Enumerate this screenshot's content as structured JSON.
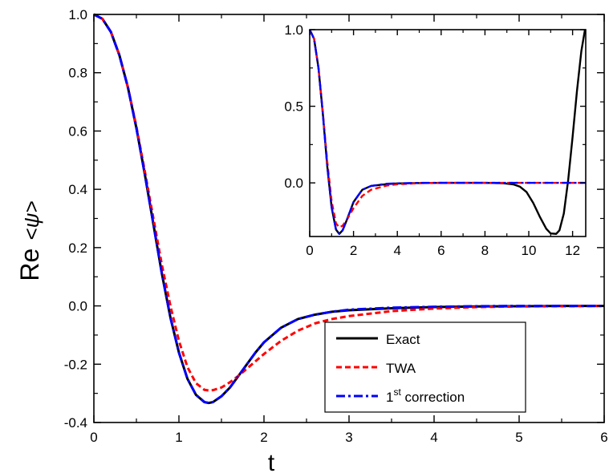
{
  "chart_data": [
    {
      "type": "line",
      "xlabel": "t",
      "ylabel_prefix": "Re",
      "ylabel_expr": "<ψ>",
      "xlim": [
        0,
        6
      ],
      "ylim": [
        -0.4,
        1.0
      ],
      "x_ticks": [
        0,
        1,
        2,
        3,
        4,
        5,
        6
      ],
      "x_tick_labels": [
        "0",
        "1",
        "2",
        "3",
        "4",
        "5",
        "6"
      ],
      "y_ticks": [
        1.0,
        0.8,
        0.6,
        0.4,
        0.2,
        0.0,
        -0.2,
        -0.4
      ],
      "y_tick_labels": [
        "1.0",
        "0.8",
        "0.6",
        "0.4",
        "0.2",
        "0.0",
        "-0.2",
        "-0.4"
      ],
      "grid": false,
      "legend": {
        "position": "bottom-right",
        "entries": [
          {
            "label": "Exact",
            "sup": "",
            "label_rest": ""
          },
          {
            "label": "TWA",
            "sup": "",
            "label_rest": ""
          },
          {
            "label": "1",
            "sup": "st",
            "label_rest": " correction"
          }
        ]
      },
      "series": [
        {
          "name": "Exact",
          "color": "#000000",
          "style": "solid",
          "x": [
            0,
            0.1,
            0.2,
            0.3,
            0.4,
            0.5,
            0.6,
            0.7,
            0.8,
            0.9,
            1.0,
            1.1,
            1.2,
            1.3,
            1.35,
            1.4,
            1.5,
            1.6,
            1.7,
            1.8,
            1.9,
            2.0,
            2.2,
            2.4,
            2.6,
            2.8,
            3.0,
            3.5,
            4.0,
            4.5,
            5.0,
            5.5,
            6.0
          ],
          "y": [
            1.0,
            0.985,
            0.94,
            0.86,
            0.75,
            0.61,
            0.45,
            0.28,
            0.11,
            -0.04,
            -0.16,
            -0.25,
            -0.305,
            -0.33,
            -0.333,
            -0.33,
            -0.31,
            -0.28,
            -0.24,
            -0.2,
            -0.16,
            -0.125,
            -0.075,
            -0.045,
            -0.03,
            -0.02,
            -0.015,
            -0.008,
            -0.004,
            -0.002,
            -0.001,
            0.0,
            0.0
          ]
        },
        {
          "name": "TWA",
          "color": "#ff0000",
          "style": "dashed",
          "x": [
            0,
            0.1,
            0.2,
            0.3,
            0.4,
            0.5,
            0.6,
            0.7,
            0.8,
            0.9,
            1.0,
            1.1,
            1.2,
            1.3,
            1.35,
            1.4,
            1.5,
            1.6,
            1.7,
            1.8,
            1.9,
            2.0,
            2.2,
            2.4,
            2.6,
            2.8,
            3.0,
            3.5,
            4.0,
            4.5,
            5.0,
            5.5,
            6.0
          ],
          "y": [
            1.0,
            0.985,
            0.94,
            0.86,
            0.75,
            0.615,
            0.46,
            0.3,
            0.14,
            0.0,
            -0.12,
            -0.21,
            -0.265,
            -0.288,
            -0.29,
            -0.289,
            -0.28,
            -0.262,
            -0.24,
            -0.215,
            -0.19,
            -0.165,
            -0.12,
            -0.085,
            -0.06,
            -0.045,
            -0.035,
            -0.018,
            -0.009,
            -0.004,
            -0.002,
            -0.001,
            0.0
          ]
        },
        {
          "name": "1st correction",
          "color": "#0000ff",
          "style": "dashdot",
          "x": [
            0,
            0.1,
            0.2,
            0.3,
            0.4,
            0.5,
            0.6,
            0.7,
            0.8,
            0.9,
            1.0,
            1.1,
            1.2,
            1.3,
            1.35,
            1.4,
            1.5,
            1.6,
            1.7,
            1.8,
            1.9,
            2.0,
            2.2,
            2.4,
            2.6,
            2.8,
            3.0,
            3.5,
            4.0,
            4.5,
            5.0,
            5.5,
            6.0
          ],
          "y": [
            1.0,
            0.985,
            0.94,
            0.86,
            0.75,
            0.61,
            0.45,
            0.28,
            0.11,
            -0.04,
            -0.16,
            -0.25,
            -0.305,
            -0.33,
            -0.333,
            -0.33,
            -0.31,
            -0.28,
            -0.24,
            -0.2,
            -0.16,
            -0.125,
            -0.075,
            -0.045,
            -0.03,
            -0.02,
            -0.013,
            -0.006,
            -0.003,
            -0.001,
            0.0,
            0.0,
            0.0
          ]
        }
      ]
    },
    {
      "type": "line",
      "xlim": [
        0,
        12.6
      ],
      "ylim": [
        -0.35,
        1.0
      ],
      "x_ticks": [
        0,
        2,
        4,
        6,
        8,
        10,
        12
      ],
      "x_tick_labels": [
        "0",
        "2",
        "4",
        "6",
        "8",
        "10",
        "12"
      ],
      "y_ticks": [
        1.0,
        0.5,
        0.0
      ],
      "y_tick_labels": [
        "1.0",
        "0.5",
        "0.0"
      ],
      "grid": false,
      "series": [
        {
          "name": "Exact",
          "color": "#000000",
          "style": "solid",
          "x": [
            0,
            0.2,
            0.4,
            0.6,
            0.8,
            1.0,
            1.2,
            1.35,
            1.5,
            1.7,
            2.0,
            2.4,
            2.8,
            3.5,
            4.0,
            5.0,
            6.0,
            7.0,
            8.0,
            8.8,
            9.3,
            9.6,
            9.9,
            10.2,
            10.5,
            10.8,
            11.0,
            11.25,
            11.4,
            11.6,
            11.8,
            12.0,
            12.2,
            12.4,
            12.566
          ],
          "y": [
            1.0,
            0.94,
            0.75,
            0.45,
            0.11,
            -0.16,
            -0.305,
            -0.333,
            -0.31,
            -0.24,
            -0.125,
            -0.045,
            -0.02,
            -0.008,
            -0.004,
            -0.001,
            0.0,
            0.0,
            0.0,
            -0.002,
            -0.01,
            -0.025,
            -0.06,
            -0.13,
            -0.22,
            -0.3,
            -0.33,
            -0.333,
            -0.31,
            -0.2,
            0.02,
            0.3,
            0.6,
            0.86,
            1.0
          ]
        },
        {
          "name": "TWA",
          "color": "#ff0000",
          "style": "dashed",
          "x": [
            0,
            0.2,
            0.4,
            0.6,
            0.8,
            1.0,
            1.2,
            1.35,
            1.5,
            1.7,
            2.0,
            2.4,
            2.8,
            3.5,
            4.0,
            5.0,
            6.0,
            8.0,
            10.0,
            12.6
          ],
          "y": [
            1.0,
            0.94,
            0.75,
            0.46,
            0.14,
            -0.12,
            -0.265,
            -0.29,
            -0.28,
            -0.24,
            -0.165,
            -0.085,
            -0.045,
            -0.018,
            -0.009,
            -0.002,
            0.0,
            0.0,
            0.0,
            0.0
          ]
        },
        {
          "name": "1st correction",
          "color": "#0000ff",
          "style": "dashdot",
          "x": [
            0,
            0.2,
            0.4,
            0.6,
            0.8,
            1.0,
            1.2,
            1.35,
            1.5,
            1.7,
            2.0,
            2.4,
            2.8,
            3.5,
            4.0,
            5.0,
            6.0,
            8.0,
            10.0,
            12.6
          ],
          "y": [
            1.0,
            0.94,
            0.75,
            0.45,
            0.11,
            -0.16,
            -0.305,
            -0.333,
            -0.31,
            -0.24,
            -0.125,
            -0.045,
            -0.02,
            -0.006,
            -0.003,
            0.0,
            0.0,
            0.0,
            0.0,
            0.0
          ]
        }
      ]
    }
  ]
}
